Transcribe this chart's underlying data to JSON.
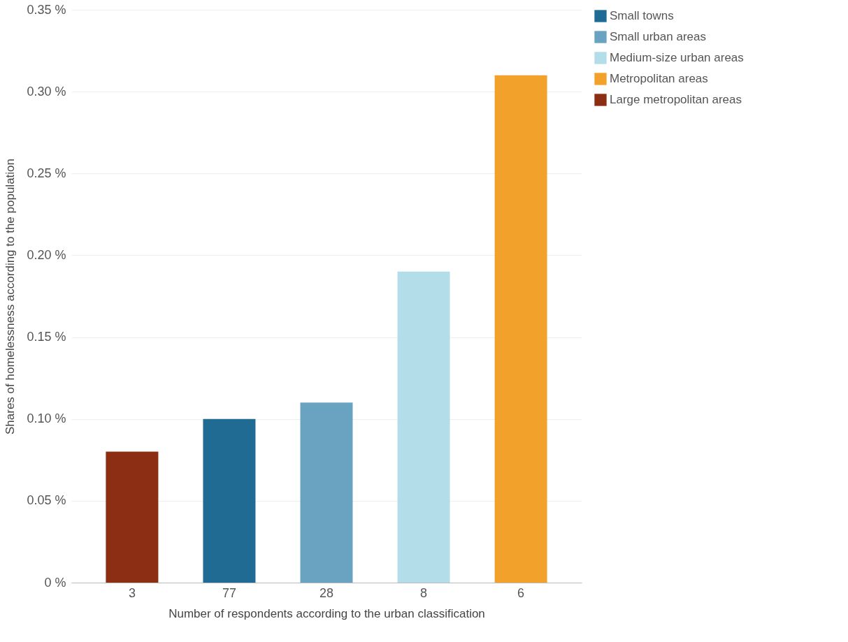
{
  "chart_data": {
    "type": "bar",
    "xlabel": "Number of respondents according to the urban classification",
    "ylabel": "Shares of homelessness according to the population",
    "categories": [
      "3",
      "77",
      "28",
      "8",
      "6"
    ],
    "series": [
      {
        "name": "Small towns",
        "color": "#1f6b94",
        "values": [
          null,
          0.1,
          null,
          null,
          null
        ]
      },
      {
        "name": "Small urban areas",
        "color": "#6aa3c2",
        "values": [
          null,
          null,
          0.11,
          null,
          null
        ]
      },
      {
        "name": "Medium-size urban areas",
        "color": "#b3dde9",
        "values": [
          null,
          null,
          null,
          0.19,
          null
        ]
      },
      {
        "name": "Metropolitan areas",
        "color": "#f2a22a",
        "values": [
          null,
          null,
          null,
          null,
          0.31
        ]
      },
      {
        "name": "Large metropolitan areas",
        "color": "#8b2e13",
        "values": [
          0.08,
          null,
          null,
          null,
          null
        ]
      }
    ],
    "ylim": [
      0,
      0.35
    ],
    "yticks": [
      {
        "value": 0,
        "label": "0 %"
      },
      {
        "value": 0.05,
        "label": "0.05 %"
      },
      {
        "value": 0.1,
        "label": "0.10 %"
      },
      {
        "value": 0.15,
        "label": "0.15 %"
      },
      {
        "value": 0.2,
        "label": "0.20 %"
      },
      {
        "value": 0.25,
        "label": "0.25 %"
      },
      {
        "value": 0.3,
        "label": "0.30 %"
      },
      {
        "value": 0.35,
        "label": "0.35 %"
      }
    ],
    "grid": "y",
    "legend": "top right"
  }
}
